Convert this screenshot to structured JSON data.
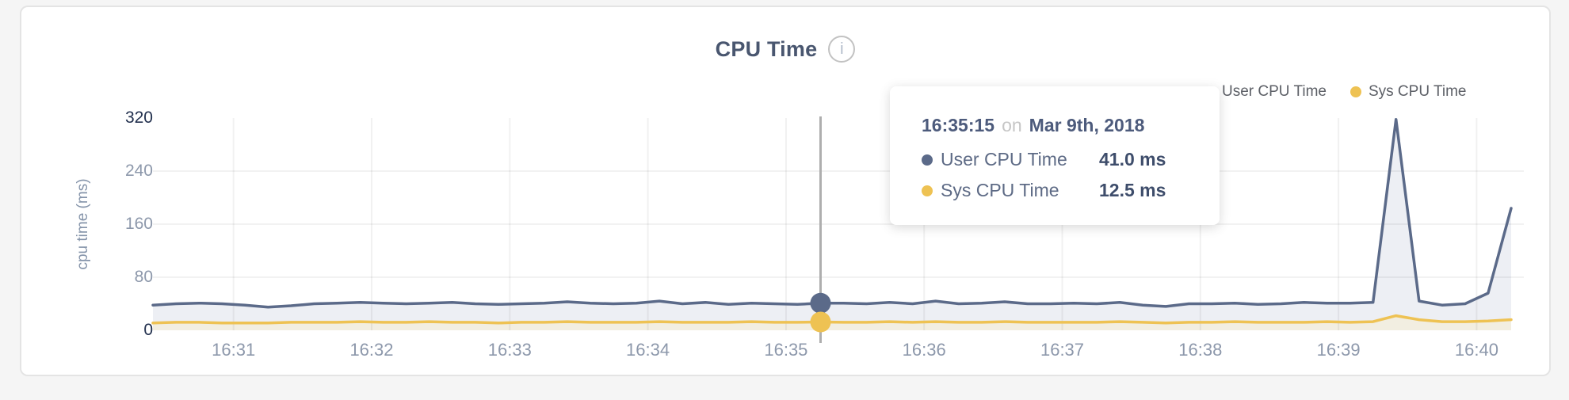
{
  "header": {
    "title": "CPU Time",
    "info_icon_glyph": "i"
  },
  "legend": {
    "items": [
      {
        "label": "User CPU Time",
        "color": "#5b6a89"
      },
      {
        "label": "Sys CPU Time",
        "color": "#eec253"
      }
    ]
  },
  "tooltip": {
    "time": "16:35:15",
    "connector": "on",
    "date": "Mar 9th, 2018",
    "rows": [
      {
        "label": "User CPU Time",
        "value": "41.0 ms",
        "color": "#5b6a89"
      },
      {
        "label": "Sys CPU Time",
        "value": "12.5 ms",
        "color": "#eec253"
      }
    ]
  },
  "axes": {
    "y_label": "cpu time (ms)",
    "y_ticks": [
      {
        "value": 320,
        "label": "320",
        "emphasis": true
      },
      {
        "value": 240,
        "label": "240",
        "emphasis": false
      },
      {
        "value": 160,
        "label": "160",
        "emphasis": false
      },
      {
        "value": 80,
        "label": "80",
        "emphasis": false
      },
      {
        "value": 0,
        "label": "0",
        "emphasis": true
      }
    ],
    "y_gridlines": [
      240,
      160,
      80
    ],
    "x_ticks": [
      "16:31",
      "16:32",
      "16:33",
      "16:34",
      "16:35",
      "16:36",
      "16:37",
      "16:38",
      "16:39",
      "16:40"
    ]
  },
  "chart_data": {
    "type": "area",
    "title": "CPU Time",
    "ylabel": "cpu time (ms)",
    "ylim": [
      0,
      320
    ],
    "x_domain": [
      "16:30:25",
      "16:40:15"
    ],
    "x_axis_ticks": [
      "16:31",
      "16:32",
      "16:33",
      "16:34",
      "16:35",
      "16:36",
      "16:37",
      "16:38",
      "16:39",
      "16:40"
    ],
    "x": [
      "16:30:25",
      "16:30:35",
      "16:30:45",
      "16:30:55",
      "16:31:05",
      "16:31:15",
      "16:31:25",
      "16:31:35",
      "16:31:45",
      "16:31:55",
      "16:32:05",
      "16:32:15",
      "16:32:25",
      "16:32:35",
      "16:32:45",
      "16:32:55",
      "16:33:05",
      "16:33:15",
      "16:33:25",
      "16:33:35",
      "16:33:45",
      "16:33:55",
      "16:34:05",
      "16:34:15",
      "16:34:25",
      "16:34:35",
      "16:34:45",
      "16:34:55",
      "16:35:05",
      "16:35:15",
      "16:35:25",
      "16:35:35",
      "16:35:45",
      "16:35:55",
      "16:36:05",
      "16:36:15",
      "16:36:25",
      "16:36:35",
      "16:36:45",
      "16:36:55",
      "16:37:05",
      "16:37:15",
      "16:37:25",
      "16:37:35",
      "16:37:45",
      "16:37:55",
      "16:38:05",
      "16:38:15",
      "16:38:25",
      "16:38:35",
      "16:38:45",
      "16:38:55",
      "16:39:05",
      "16:39:15",
      "16:39:25",
      "16:39:35",
      "16:39:45",
      "16:39:55",
      "16:40:05",
      "16:40:15"
    ],
    "series": [
      {
        "name": "User CPU Time",
        "color": "#5b6a89",
        "fill": "#edeff4",
        "values": [
          38,
          40,
          41,
          40,
          38,
          35,
          37,
          40,
          41,
          42,
          41,
          40,
          41,
          42,
          40,
          39,
          40,
          41,
          43,
          41,
          40,
          41,
          44,
          40,
          42,
          39,
          41,
          40,
          39,
          41,
          41,
          40,
          42,
          40,
          44,
          40,
          41,
          43,
          40,
          40,
          41,
          40,
          42,
          38,
          36,
          40,
          40,
          41,
          39,
          40,
          42,
          41,
          41,
          42,
          318,
          44,
          38,
          40,
          56,
          184
        ]
      },
      {
        "name": "Sys CPU Time",
        "color": "#eec253",
        "fill": "#f2eee1",
        "values": [
          11,
          12,
          12,
          11,
          11,
          11,
          12,
          12,
          12,
          13,
          12,
          12,
          13,
          12,
          12,
          11,
          12,
          12,
          13,
          12,
          12,
          12,
          13,
          12,
          12,
          12,
          13,
          12,
          12,
          12.5,
          12,
          12,
          13,
          12,
          13,
          12,
          12,
          13,
          12,
          12,
          12,
          12,
          13,
          12,
          11,
          12,
          12,
          13,
          12,
          12,
          12,
          13,
          12,
          13,
          22,
          16,
          13,
          13,
          14,
          16
        ]
      }
    ],
    "hover": {
      "time": "16:35:15"
    }
  }
}
